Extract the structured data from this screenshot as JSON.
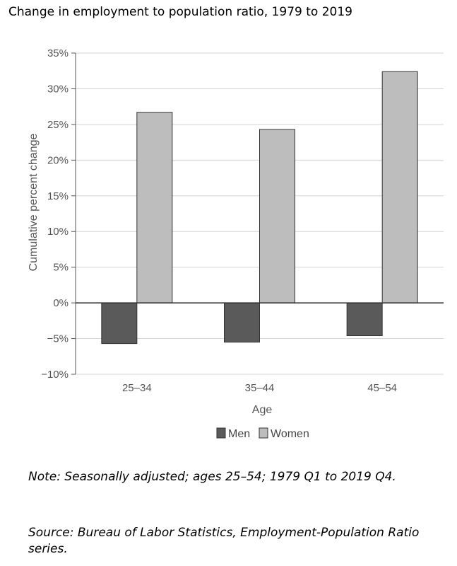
{
  "title": "Change in employment to population ratio, 1979 to 2019",
  "note": "Note: Seasonally adjusted; ages 25–54; 1979 Q1 to 2019 Q4.",
  "source": "Source: Bureau of Labor Statistics, Employment-Population Ratio series.",
  "chart_data": {
    "type": "bar",
    "categories": [
      "25–34",
      "35–44",
      "45–54"
    ],
    "series": [
      {
        "name": "Men",
        "values": [
          -5.7,
          -5.5,
          -4.6
        ],
        "color": "#5a5a5a"
      },
      {
        "name": "Women",
        "values": [
          26.7,
          24.3,
          32.4
        ],
        "color": "#bdbdbd"
      }
    ],
    "xlabel": "Age",
    "ylabel": "Cumulative percent change",
    "ylim": [
      -10,
      35
    ],
    "yticks": [
      -10,
      -5,
      0,
      5,
      10,
      15,
      20,
      25,
      30,
      35
    ],
    "ytick_labels": [
      "−10%",
      "−5%",
      "0%",
      "5%",
      "10%",
      "15%",
      "20%",
      "25%",
      "30%",
      "35%"
    ],
    "grid": true,
    "legend": "bottom-center"
  }
}
